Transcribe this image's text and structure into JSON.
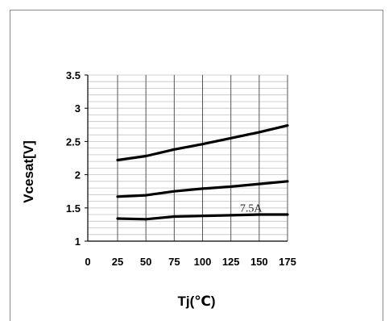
{
  "chart_data": {
    "type": "line",
    "xlabel": "Tj(℃)",
    "ylabel": "Vcesat[V]",
    "xlim": [
      0,
      175
    ],
    "ylim": [
      1,
      3.5
    ],
    "xticks": [
      0,
      25,
      50,
      75,
      100,
      125,
      150,
      175
    ],
    "xtick_labels": [
      "0",
      "25",
      "50",
      "75",
      "100",
      "125",
      "150",
      "175"
    ],
    "yticks": [
      1,
      1.5,
      2,
      2.5,
      3,
      3.5
    ],
    "ytick_labels": [
      "1",
      "1.5",
      "2",
      "2.5",
      "3",
      "3.5"
    ],
    "grid": true,
    "series": [
      {
        "x": [
          25,
          50,
          75,
          100,
          125,
          150,
          175
        ],
        "values": [
          2.22,
          2.28,
          2.38,
          2.46,
          2.55,
          2.64,
          2.74
        ]
      },
      {
        "x": [
          25,
          50,
          75,
          100,
          125,
          150,
          175
        ],
        "values": [
          1.67,
          1.69,
          1.75,
          1.79,
          1.82,
          1.86,
          1.9
        ]
      },
      {
        "x": [
          25,
          50,
          75,
          100,
          125,
          150,
          175
        ],
        "values": [
          1.34,
          1.33,
          1.37,
          1.38,
          1.39,
          1.4,
          1.4
        ]
      }
    ],
    "annotations": [
      {
        "text": "7.5A",
        "x": 133,
        "y": 1.44
      }
    ]
  }
}
